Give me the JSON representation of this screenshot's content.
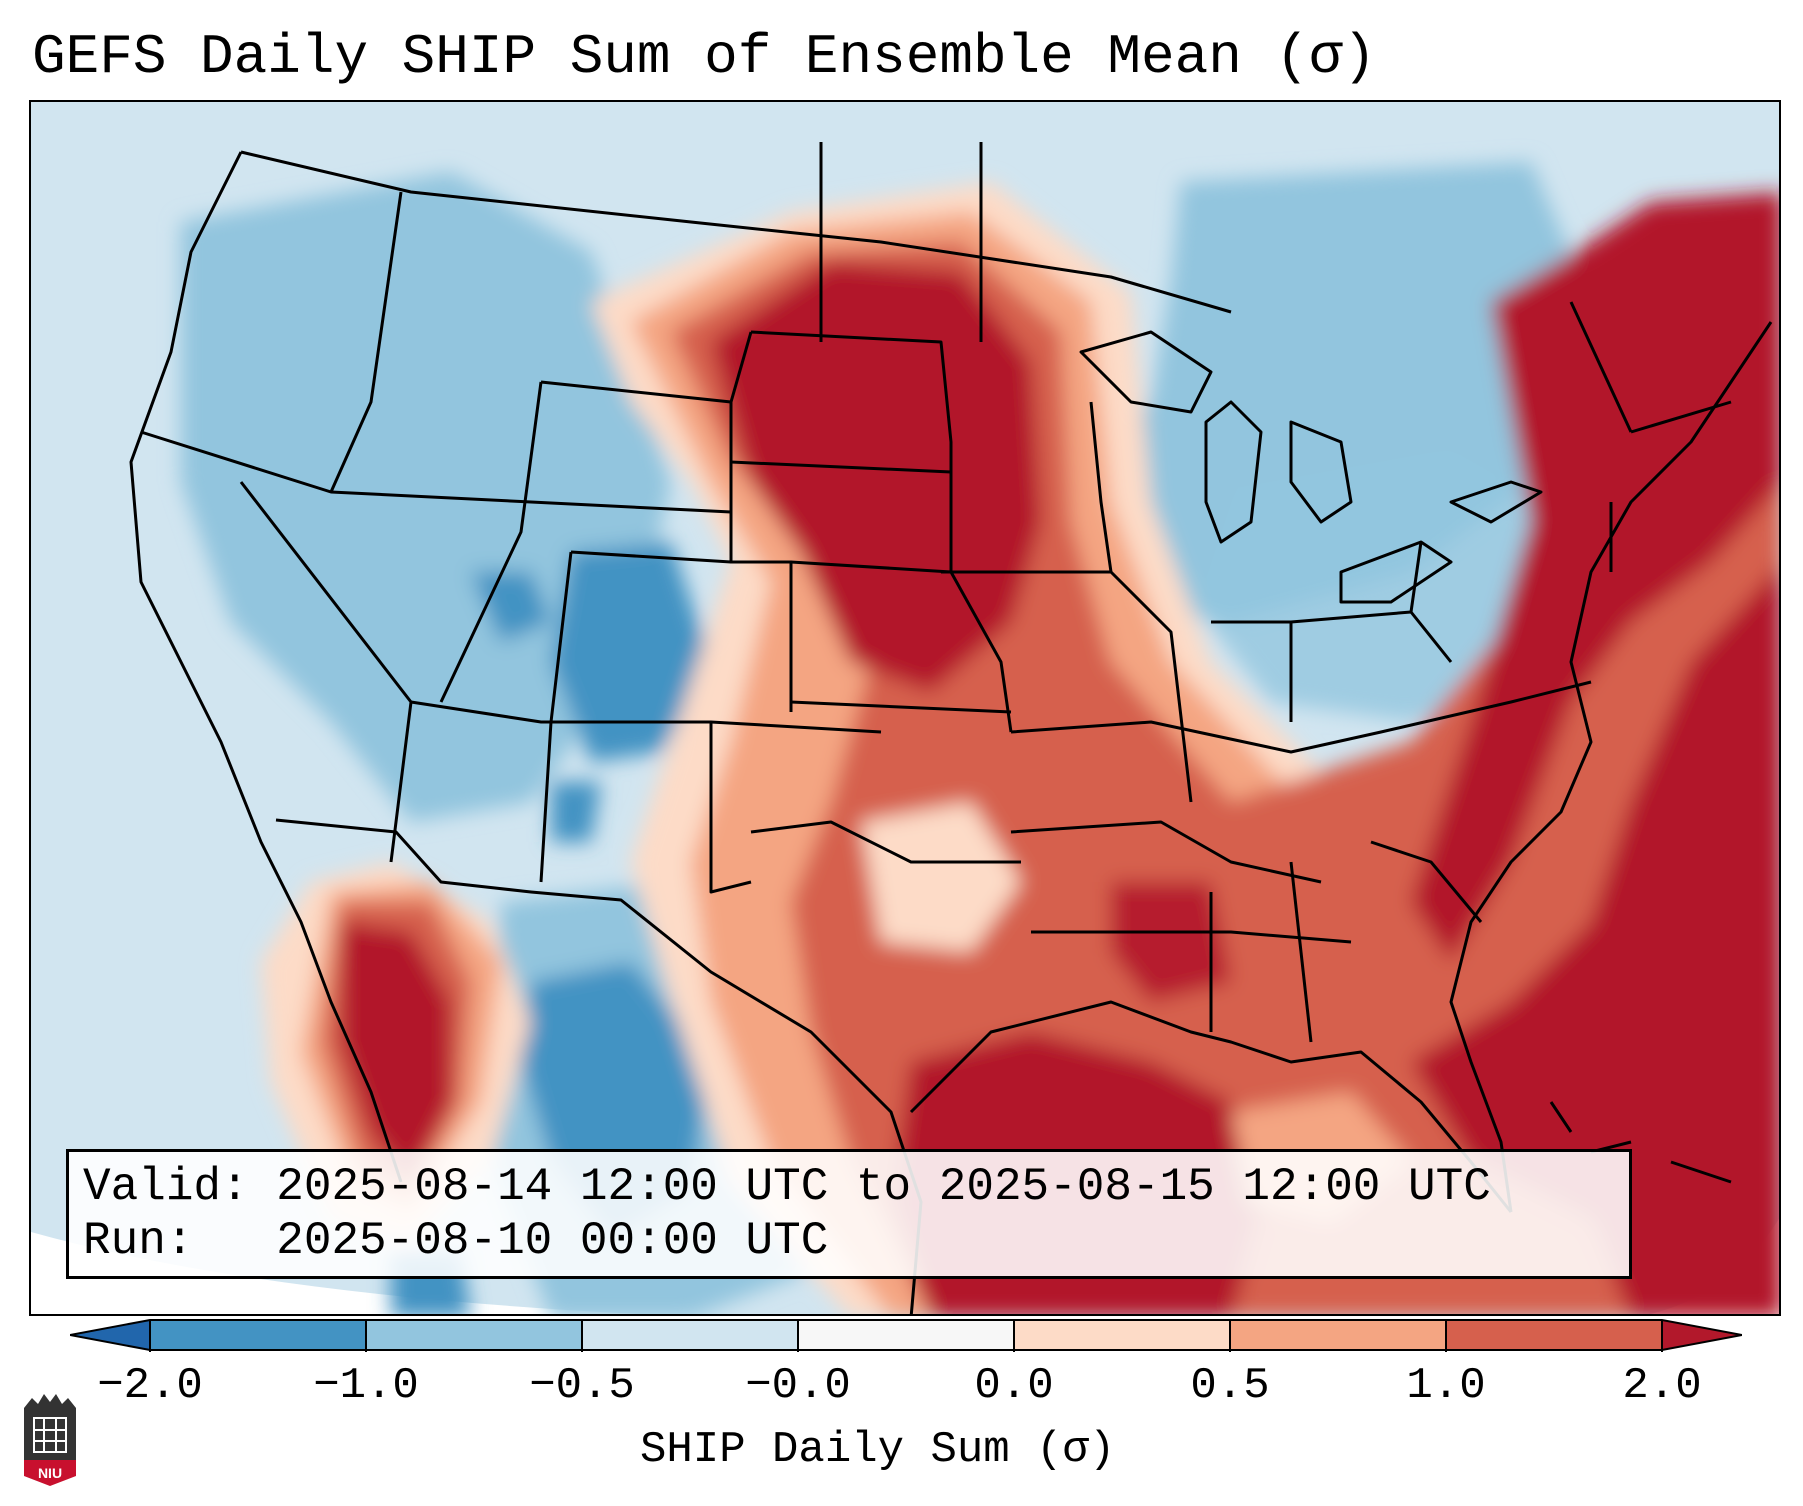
{
  "title": "GEFS Daily SHIP Sum of Ensemble Mean (σ)",
  "info": {
    "valid": "Valid: 2025-08-14 12:00 UTC to 2025-08-15 12:00 UTC",
    "run": "Run:   2025-08-10 00:00 UTC"
  },
  "colorbar": {
    "label": "SHIP Daily Sum (σ)",
    "ticks": [
      "−2.0",
      "−1.0",
      "−0.5",
      "−0.0",
      "0.0",
      "0.5",
      "1.0",
      "2.0"
    ],
    "colors": {
      "lt_-2": "#2166ac",
      "-2_-1": "#4393c3",
      "-1_-0.5": "#92c5de",
      "-0.5_0": "#d1e5f0",
      "0_0": "#f7f7f7",
      "0_0.5": "#fddbc7",
      "0.5_1": "#f4a582",
      "1_2": "#d6604d",
      "gt_2": "#b2182b"
    },
    "extend": "both"
  },
  "logo": {
    "text": "NIU",
    "icon": "niu-logo-icon"
  },
  "map": {
    "type": "heatmap",
    "region": "Continental United States",
    "variable": "SHIP Daily Sum (σ)"
  }
}
